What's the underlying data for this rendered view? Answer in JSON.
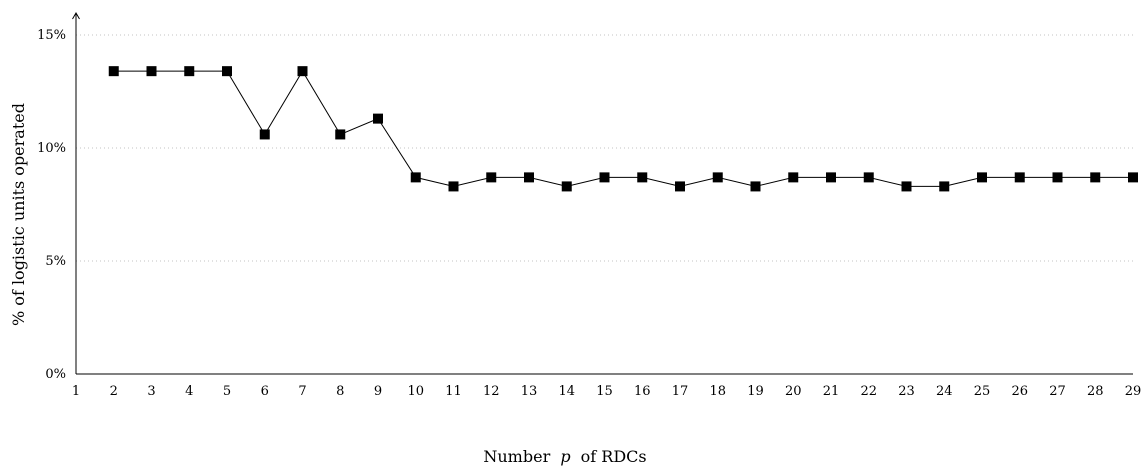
{
  "chart_data": {
    "type": "line",
    "title": "",
    "xlabel": "Number",
    "xlabel_var": "p",
    "xlabel_tail": "of RDCs",
    "ylabel": "% of logistic units operated",
    "xlim": [
      1,
      29
    ],
    "ylim": [
      0,
      15
    ],
    "yticks": [
      0,
      5,
      10,
      15
    ],
    "ytick_labels": [
      "0%",
      "5%",
      "10%",
      "15%"
    ],
    "xticks": [
      1,
      2,
      3,
      4,
      5,
      6,
      7,
      8,
      9,
      10,
      11,
      12,
      13,
      14,
      15,
      16,
      17,
      18,
      19,
      20,
      21,
      22,
      23,
      24,
      25,
      26,
      27,
      28,
      29
    ],
    "grid": "horizontal dotted",
    "marker": "square",
    "color": "#000000",
    "grid_color": "#b0b0b0",
    "series": [
      {
        "x": [
          2,
          3,
          4,
          5,
          6,
          7,
          8,
          9,
          10,
          11,
          12,
          13,
          14,
          15,
          16,
          17,
          18,
          19,
          20,
          21,
          22,
          23,
          24,
          25,
          26,
          27,
          28,
          29
        ],
        "y": [
          13.4,
          13.4,
          13.4,
          13.4,
          10.6,
          13.4,
          10.6,
          11.3,
          8.7,
          8.3,
          8.7,
          8.7,
          8.3,
          8.7,
          8.7,
          8.3,
          8.7,
          8.3,
          8.7,
          8.7,
          8.7,
          8.3,
          8.3,
          8.7,
          8.7,
          8.7,
          8.7,
          8.7
        ]
      }
    ]
  }
}
